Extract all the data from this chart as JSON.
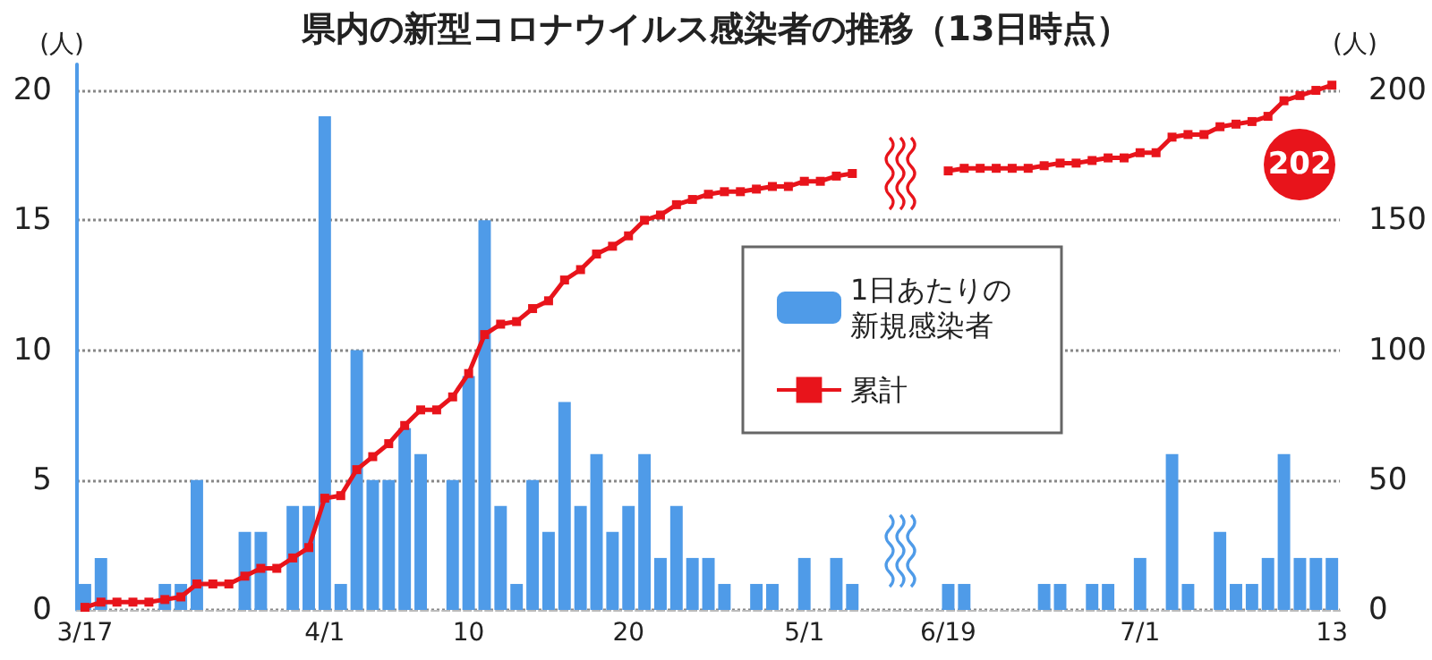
{
  "chart_data": {
    "type": "bar",
    "title": "県内の新型コロナウイルス感染者の推移（13日時点）",
    "ylabel": "(人)",
    "y2label": "(人)",
    "categories": [
      "3/17",
      null,
      null,
      null,
      null,
      null,
      null,
      null,
      null,
      null,
      null,
      null,
      null,
      null,
      null,
      "4/1",
      null,
      null,
      null,
      null,
      null,
      null,
      null,
      null,
      "10",
      null,
      null,
      null,
      null,
      null,
      null,
      null,
      null,
      null,
      "20",
      null,
      null,
      null,
      null,
      null,
      null,
      null,
      null,
      null,
      null,
      "5/1",
      null,
      null,
      null,
      null,
      null,
      null,
      null,
      null,
      "6/19",
      null,
      null,
      null,
      null,
      null,
      null,
      null,
      null,
      null,
      null,
      null,
      "7/1",
      null,
      null,
      null,
      null,
      null,
      null,
      null,
      null,
      null,
      null,
      null,
      "13"
    ],
    "series": [
      {
        "name": "1日あたりの新規感染者",
        "color": "#4f9be8",
        "values": [
          1,
          2,
          0,
          0,
          0,
          1,
          1,
          5,
          0,
          0,
          3,
          3,
          0,
          4,
          4,
          19,
          1,
          10,
          5,
          5,
          7,
          6,
          0,
          5,
          9,
          15,
          4,
          1,
          5,
          3,
          8,
          4,
          6,
          3,
          4,
          6,
          2,
          4,
          2,
          2,
          1,
          0,
          1,
          1,
          0,
          2,
          0,
          2,
          1,
          null,
          null,
          null,
          null,
          null,
          1,
          1,
          0,
          0,
          0,
          0,
          1,
          1,
          0,
          1,
          1,
          0,
          2,
          0,
          6,
          1,
          0,
          3,
          1,
          1,
          2,
          6,
          2,
          2,
          2
        ]
      },
      {
        "name": "累計",
        "type": "line",
        "axis": "y2",
        "color": "#e8141b",
        "marker": "square",
        "values": [
          1,
          3,
          3,
          3,
          3,
          4,
          5,
          10,
          10,
          10,
          13,
          16,
          16,
          20,
          24,
          43,
          44,
          54,
          59,
          64,
          71,
          77,
          77,
          82,
          91,
          106,
          110,
          111,
          116,
          119,
          127,
          131,
          137,
          140,
          144,
          150,
          152,
          156,
          158,
          160,
          161,
          161,
          162,
          163,
          163,
          165,
          165,
          167,
          168,
          null,
          null,
          null,
          null,
          null,
          169,
          170,
          170,
          170,
          170,
          170,
          171,
          172,
          172,
          173,
          174,
          174,
          176,
          176,
          182,
          183,
          183,
          186,
          187,
          188,
          190,
          196,
          198,
          200,
          202
        ]
      }
    ],
    "ylim": [
      0,
      21
    ],
    "yticks": [
      0,
      5,
      10,
      15,
      20
    ],
    "y2lim": [
      0,
      210
    ],
    "y2ticks": [
      0,
      50,
      100,
      150,
      200
    ],
    "grid": "y",
    "legend": "right",
    "annotations": [
      "202"
    ]
  }
}
